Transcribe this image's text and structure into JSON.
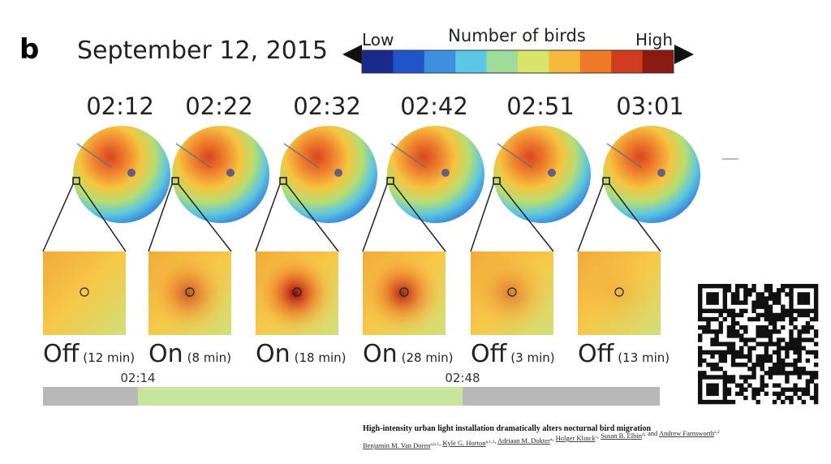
{
  "panel": "b",
  "date": "September 12, 2015",
  "colorbar": {
    "low": "Low",
    "title": "Number of birds",
    "high": "High",
    "colors": [
      "#1a2a8c",
      "#1f55c8",
      "#3f8fe0",
      "#5cc6e6",
      "#9fdc9a",
      "#d9e46a",
      "#f5b93e",
      "#ee7a2a",
      "#cf3c1f",
      "#8c1a12"
    ]
  },
  "frames": [
    {
      "time": "02:12",
      "state": "Off",
      "duration": "(12 min)"
    },
    {
      "time": "02:22",
      "state": "On",
      "duration": "(8 min)"
    },
    {
      "time": "02:32",
      "state": "On",
      "duration": "(18 min)"
    },
    {
      "time": "02:42",
      "state": "On",
      "duration": "(28 min)"
    },
    {
      "time": "02:51",
      "state": "Off",
      "duration": "(3 min)"
    },
    {
      "time": "03:01",
      "state": "Off",
      "duration": "(13 min)"
    }
  ],
  "timeline": {
    "start": "02:14",
    "end": "02:48"
  },
  "citation": {
    "title": "High-intensity urban light installation dramatically alters nocturnal bird migration",
    "authors": [
      {
        "name": "Benjamin M. Van Doren",
        "sup": "a,b,1"
      },
      {
        "name": "Kyle G. Horton",
        "sup": "a,1,2"
      },
      {
        "name": "Adriaan M. Dokter",
        "sup": "a"
      },
      {
        "name": "Holger Klinck",
        "sup": "c"
      },
      {
        "name": "Susan B. Elbin",
        "sup": "d"
      },
      {
        "name": "Andrew Farnsworth",
        "sup": "a,2"
      }
    ],
    "separator": ", ",
    "last_separator": ", and "
  }
}
